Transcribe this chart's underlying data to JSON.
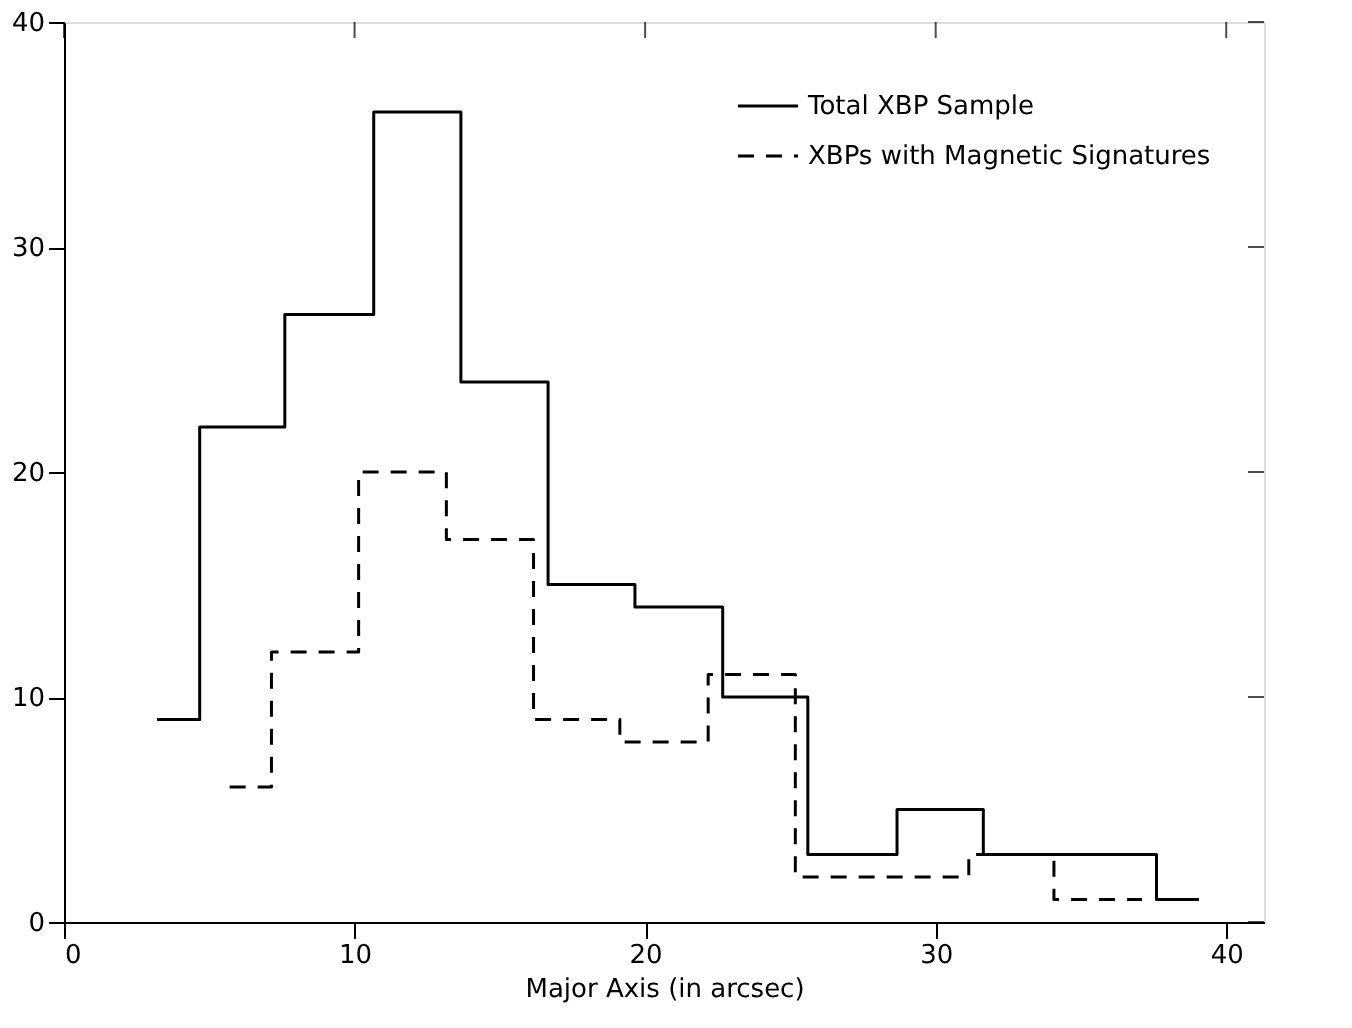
{
  "chart_data": {
    "type": "step",
    "xlabel": "Major Axis (in arcsec)",
    "xlim": [
      0,
      41.3
    ],
    "ylim": [
      0,
      40
    ],
    "xticks": [
      0,
      10,
      20,
      30,
      40
    ],
    "yticks": [
      0,
      10,
      20,
      30,
      40
    ],
    "legend": "top right",
    "grid": false,
    "series": [
      {
        "name": "Total XBP Sample",
        "color": "#000000",
        "line_style": "solid",
        "x": [
          3.2,
          4.67,
          7.6,
          10.66,
          13.66,
          16.66,
          19.65,
          22.67,
          25.6,
          28.67,
          31.64,
          37.6,
          39.06
        ],
        "values": [
          9,
          22,
          27,
          36,
          24,
          15,
          14,
          10,
          3,
          5,
          3,
          1,
          1
        ]
      },
      {
        "name": "XBPs with Magnetic Signatures",
        "color": "#000000",
        "line_style": "dashed",
        "x": [
          5.7,
          7.14,
          10.14,
          13.16,
          16.16,
          19.13,
          22.17,
          25.17,
          31.14,
          34.07,
          37.1
        ],
        "values": [
          6,
          12,
          20,
          17,
          9,
          8,
          11,
          2,
          3,
          1,
          1
        ]
      }
    ]
  }
}
